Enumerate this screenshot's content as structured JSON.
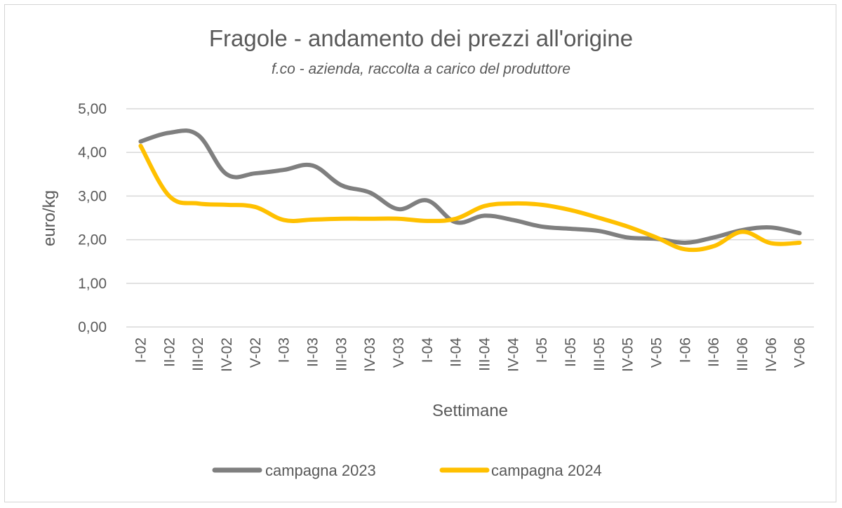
{
  "chart_data": {
    "type": "line",
    "title": "Fragole - andamento dei prezzi all'origine",
    "subtitle": "f.co -  azienda, raccolta a carico del produttore",
    "xlabel": "Settimane",
    "ylabel": "euro/kg",
    "ylim": [
      0,
      5
    ],
    "yticks": [
      "0,00",
      "1,00",
      "2,00",
      "3,00",
      "4,00",
      "5,00"
    ],
    "grid": true,
    "legend_position": "bottom",
    "categories": [
      "I-02",
      "II-02",
      "III-02",
      "IV-02",
      "V-02",
      "I-03",
      "II-03",
      "III-03",
      "IV-03",
      "V-03",
      "I-04",
      "II-04",
      "III-04",
      "IV-04",
      "I-05",
      "II-05",
      "III-05",
      "IV-05",
      "V-05",
      "I-06",
      "II-06",
      "III-06",
      "IV-06",
      "V-06"
    ],
    "series": [
      {
        "name": "campagna 2023",
        "color": "#7f7f7f",
        "values": [
          4.25,
          4.45,
          4.4,
          3.5,
          3.52,
          3.6,
          3.7,
          3.25,
          3.08,
          2.7,
          2.9,
          2.4,
          2.55,
          2.45,
          2.3,
          2.25,
          2.2,
          2.05,
          2.02,
          1.93,
          2.05,
          2.22,
          2.28,
          2.15
        ]
      },
      {
        "name": "campagna 2024",
        "color": "#ffc000",
        "values": [
          4.15,
          3.0,
          2.83,
          2.8,
          2.75,
          2.45,
          2.46,
          2.48,
          2.48,
          2.48,
          2.43,
          2.48,
          2.77,
          2.83,
          2.8,
          2.68,
          2.5,
          2.3,
          2.05,
          1.78,
          1.85,
          2.18,
          1.92,
          1.93
        ]
      }
    ]
  }
}
